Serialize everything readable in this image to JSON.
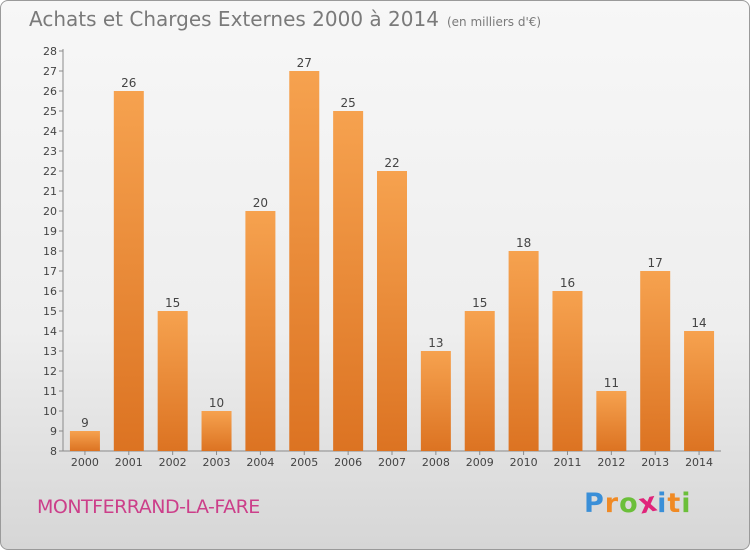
{
  "header": {
    "title": "Achats et Charges Externes 2000 à 2014",
    "subtitle": "(en milliers d'€)"
  },
  "footer": {
    "place": "MONTFERRAND-LA-FARE",
    "logo_letters": [
      "P",
      "r",
      "o",
      "x",
      "i",
      "t",
      "i"
    ],
    "logo_colors": [
      "#3a8fd8",
      "#f08a24",
      "#6bbf3a",
      "#e0247a",
      "#3a8fd8",
      "#f08a24",
      "#6bbf3a"
    ]
  },
  "chart_data": {
    "type": "bar",
    "categories": [
      "2000",
      "2001",
      "2002",
      "2003",
      "2004",
      "2005",
      "2006",
      "2007",
      "2008",
      "2009",
      "2010",
      "2011",
      "2012",
      "2013",
      "2014"
    ],
    "values": [
      9,
      26,
      15,
      10,
      20,
      27,
      25,
      22,
      13,
      15,
      18,
      16,
      11,
      17,
      14
    ],
    "ylim": [
      8,
      28
    ],
    "yticks": [
      8,
      9,
      10,
      11,
      12,
      13,
      14,
      15,
      16,
      17,
      18,
      19,
      20,
      21,
      22,
      23,
      24,
      25,
      26,
      27,
      28
    ],
    "grid": false,
    "bar_color_top": "#f6a24f",
    "bar_color_bottom": "#dc7322"
  }
}
